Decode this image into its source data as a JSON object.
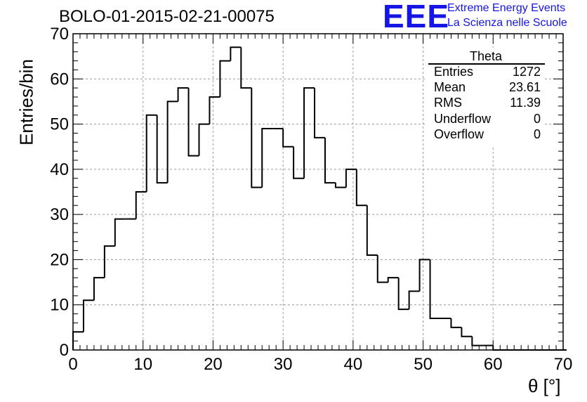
{
  "title": "BOLO-01-2015-02-21-00075",
  "logo": {
    "mark": "EEE",
    "line1": "Extreme Energy Events",
    "line2": "La Scienza nelle Scuole",
    "color": "#1515e6"
  },
  "stats_box": {
    "name": "Theta",
    "rows": [
      {
        "label": "Entries",
        "value": "1272"
      },
      {
        "label": "Mean",
        "value": "23.61"
      },
      {
        "label": "RMS",
        "value": "11.39"
      },
      {
        "label": "Underflow",
        "value": "0"
      },
      {
        "label": "Overflow",
        "value": "0"
      }
    ]
  },
  "chart_data": {
    "type": "histogram",
    "title": "BOLO-01-2015-02-21-00075",
    "xlabel": "θ [°]",
    "ylabel": "Entries/bin",
    "xlim": [
      0,
      70
    ],
    "ylim": [
      0,
      70
    ],
    "bin_width": 1.5,
    "x_ticks": [
      0,
      10,
      20,
      30,
      40,
      50,
      60,
      70
    ],
    "y_ticks": [
      0,
      10,
      20,
      30,
      40,
      50,
      60,
      70
    ],
    "grid": true,
    "values": [
      4,
      11,
      16,
      23,
      29,
      29,
      35,
      52,
      37,
      55,
      58,
      43,
      50,
      56,
      64,
      67,
      58,
      36,
      49,
      49,
      45,
      38,
      58,
      47,
      37,
      36,
      40,
      32,
      21,
      15,
      16,
      9,
      13,
      20,
      7,
      7,
      5,
      3,
      1,
      1,
      0,
      0,
      0,
      0,
      0,
      0,
      0
    ]
  }
}
